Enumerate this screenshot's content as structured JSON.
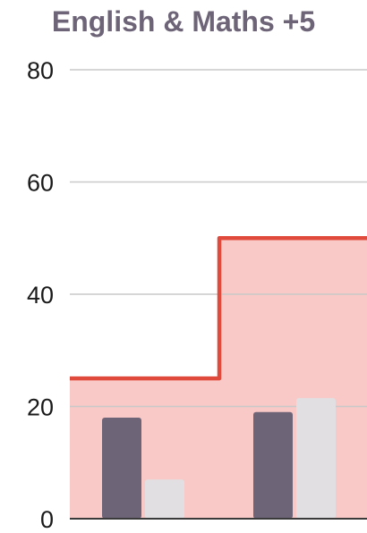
{
  "chart_data": {
    "type": "bar",
    "title": "English & Maths +5",
    "categories": [
      "",
      ""
    ],
    "series": [
      {
        "values": [
          18,
          19
        ],
        "color": "#6e6478"
      },
      {
        "values": [
          7,
          21.5
        ],
        "color": "#e2dfe2"
      }
    ],
    "threshold": {
      "values": [
        25,
        50
      ],
      "line_color": "#e04a3c",
      "fill_color": "#f8c9c6"
    },
    "ylim": [
      0,
      80
    ],
    "yticks": [
      "0",
      "20",
      "40",
      "60",
      "80"
    ],
    "grid": true
  }
}
